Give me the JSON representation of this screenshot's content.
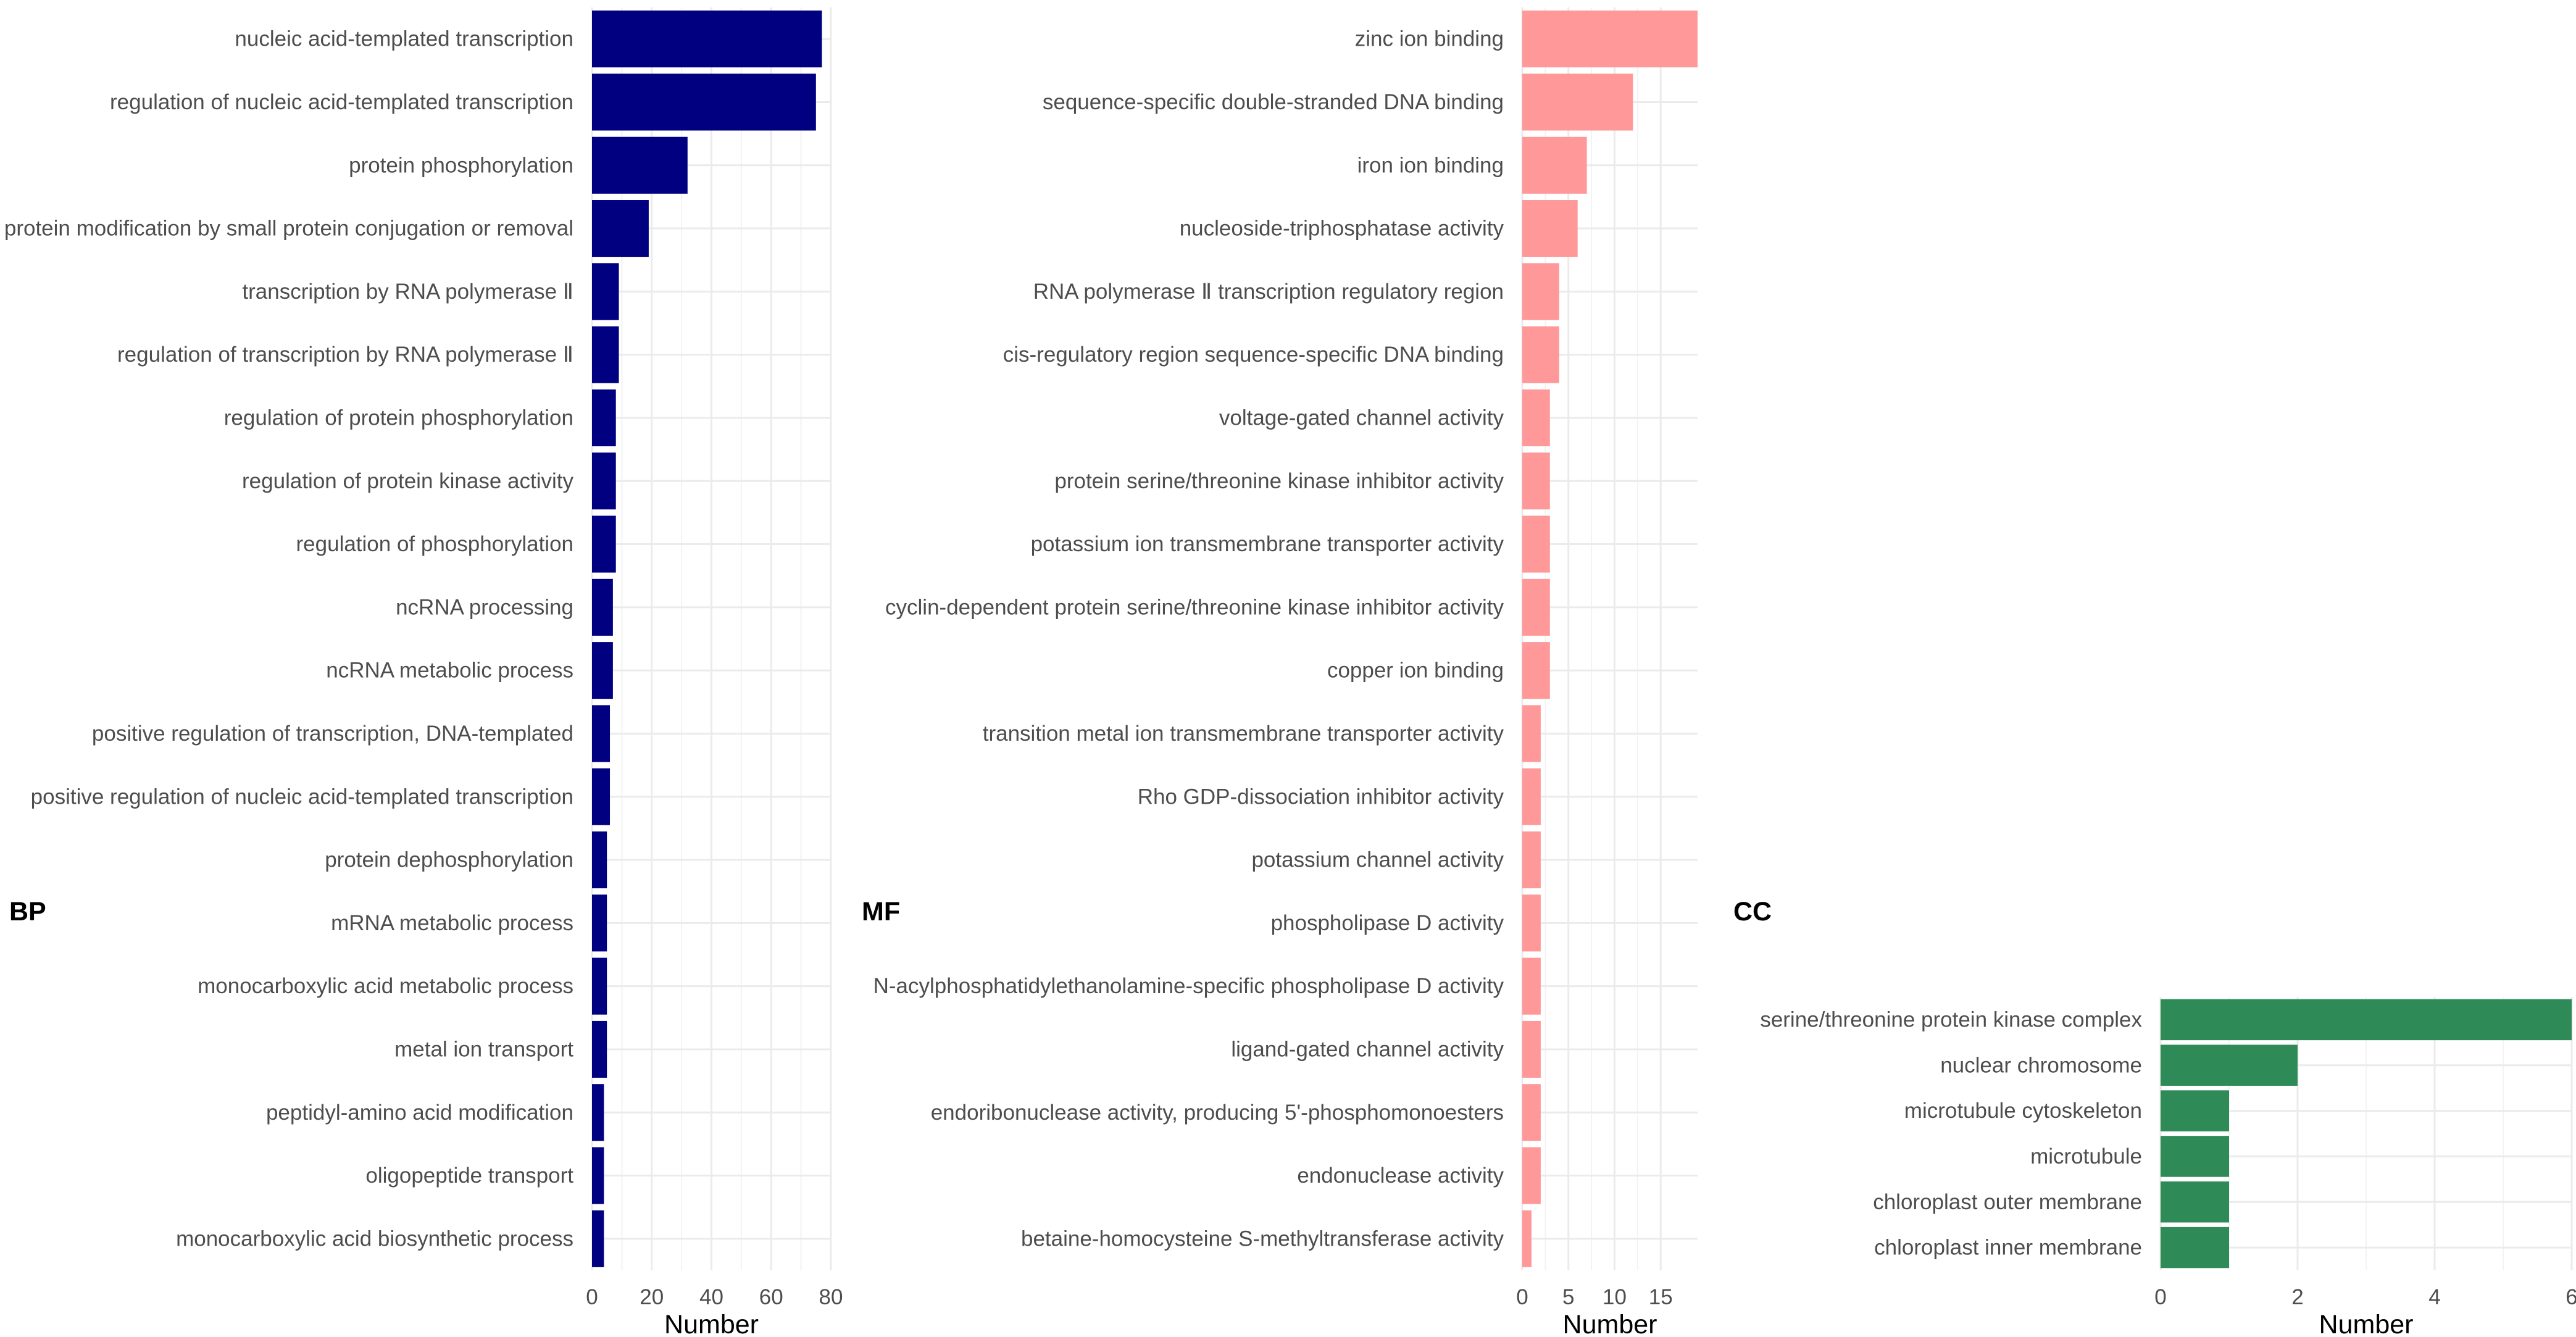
{
  "colors": {
    "bp": "#000080",
    "mf": "#FF9999",
    "cc": "#2E8B57"
  },
  "chart_data": [
    {
      "type": "bar",
      "orientation": "horizontal",
      "panel_label": "BP",
      "xlabel": "Number",
      "ylabel": "",
      "xlim": [
        0,
        80
      ],
      "ticks": [
        0,
        20,
        40,
        60,
        80
      ],
      "color": "#000080",
      "categories": [
        "nucleic acid-templated transcription",
        "regulation of nucleic acid-templated transcription",
        "protein phosphorylation",
        "protein modification by small protein conjugation or removal",
        "transcription by RNA polymerase Ⅱ",
        "regulation of transcription by RNA polymerase Ⅱ",
        "regulation of protein phosphorylation",
        "regulation of protein kinase activity",
        "regulation of phosphorylation",
        "ncRNA processing",
        "ncRNA metabolic process",
        "positive regulation of transcription, DNA-templated",
        "positive regulation of nucleic acid-templated transcription",
        "protein dephosphorylation",
        "mRNA metabolic process",
        "monocarboxylic acid metabolic process",
        "metal ion transport",
        "peptidyl-amino acid modification",
        "oligopeptide transport",
        "monocarboxylic acid biosynthetic process"
      ],
      "values": [
        77,
        75,
        32,
        19,
        9,
        9,
        8,
        8,
        8,
        7,
        7,
        6,
        6,
        5,
        5,
        5,
        5,
        4,
        4,
        4
      ]
    },
    {
      "type": "bar",
      "orientation": "horizontal",
      "panel_label": "MF",
      "xlabel": "Number",
      "ylabel": "",
      "xlim": [
        0,
        19
      ],
      "ticks": [
        0,
        5,
        10,
        15
      ],
      "color": "#FF9999",
      "categories": [
        "zinc ion binding",
        "sequence-specific double-stranded DNA binding",
        "iron ion binding",
        "nucleoside-triphosphatase activity",
        "RNA polymerase Ⅱ transcription regulatory region",
        "cis-regulatory region sequence-specific DNA binding",
        "voltage-gated channel activity",
        "protein serine/threonine kinase inhibitor activity",
        "potassium ion transmembrane transporter activity",
        "cyclin-dependent protein serine/threonine kinase inhibitor activity",
        "copper ion binding",
        "transition metal ion transmembrane transporter activity",
        "Rho GDP-dissociation inhibitor activity",
        "potassium channel activity",
        "phospholipase D activity",
        "N-acylphosphatidylethanolamine-specific phospholipase D activity",
        "ligand-gated channel activity",
        "endoribonuclease activity, producing 5'-phosphomonoesters",
        "endonuclease activity",
        "betaine-homocysteine S-methyltransferase activity"
      ],
      "values": [
        19,
        12,
        7,
        6,
        4,
        4,
        3,
        3,
        3,
        3,
        3,
        2,
        2,
        2,
        2,
        2,
        2,
        2,
        2,
        1
      ]
    },
    {
      "type": "bar",
      "orientation": "horizontal",
      "panel_label": "CC",
      "xlabel": "Number",
      "ylabel": "",
      "xlim": [
        0,
        6
      ],
      "ticks": [
        0,
        2,
        4,
        6
      ],
      "color": "#2E8B57",
      "categories": [
        "serine/threonine protein kinase complex",
        "nuclear chromosome",
        "microtubule cytoskeleton",
        "microtubule",
        "chloroplast outer membrane",
        "chloroplast inner membrane"
      ],
      "values": [
        6,
        2,
        1,
        1,
        1,
        1
      ]
    }
  ]
}
